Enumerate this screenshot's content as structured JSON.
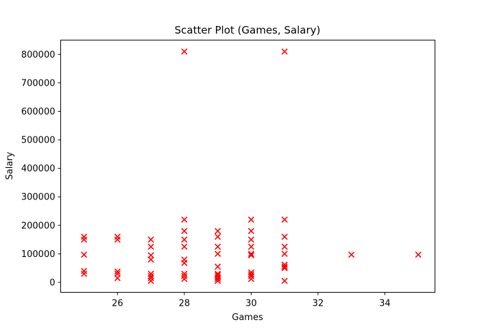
{
  "chart_data": {
    "type": "scatter",
    "title": "Scatter Plot (Games, Salary)",
    "xlabel": "Games",
    "ylabel": "Salary",
    "xlim": [
      24.3,
      35.5
    ],
    "ylim": [
      -35000,
      850000
    ],
    "xticks": [
      "26",
      "28",
      "30",
      "32",
      "34"
    ],
    "xtick_values": [
      26,
      28,
      30,
      32,
      34
    ],
    "yticks": [
      "0",
      "100000",
      "200000",
      "300000",
      "400000",
      "500000",
      "600000",
      "700000",
      "800000"
    ],
    "ytick_values": [
      0,
      100000,
      200000,
      300000,
      400000,
      500000,
      600000,
      700000,
      800000
    ],
    "grid": false,
    "marker": "x",
    "color": "#ff0000",
    "series": [
      {
        "points": [
          [
            25,
            160000
          ],
          [
            25,
            150000
          ],
          [
            25,
            97000
          ],
          [
            25,
            40000
          ],
          [
            25,
            30000
          ],
          [
            26,
            160000
          ],
          [
            26,
            150000
          ],
          [
            26,
            38000
          ],
          [
            26,
            30000
          ],
          [
            26,
            15000
          ],
          [
            27,
            150000
          ],
          [
            27,
            125000
          ],
          [
            27,
            95000
          ],
          [
            27,
            80000
          ],
          [
            27,
            30000
          ],
          [
            27,
            22000
          ],
          [
            27,
            15000
          ],
          [
            27,
            5000
          ],
          [
            28,
            810000
          ],
          [
            28,
            220000
          ],
          [
            28,
            180000
          ],
          [
            28,
            150000
          ],
          [
            28,
            125000
          ],
          [
            28,
            80000
          ],
          [
            28,
            68000
          ],
          [
            28,
            30000
          ],
          [
            28,
            22000
          ],
          [
            28,
            12000
          ],
          [
            29,
            180000
          ],
          [
            29,
            160000
          ],
          [
            29,
            125000
          ],
          [
            29,
            100000
          ],
          [
            29,
            55000
          ],
          [
            29,
            30000
          ],
          [
            29,
            25000
          ],
          [
            29,
            18000
          ],
          [
            29,
            12000
          ],
          [
            29,
            5000
          ],
          [
            30,
            220000
          ],
          [
            30,
            180000
          ],
          [
            30,
            150000
          ],
          [
            30,
            125000
          ],
          [
            30,
            100000
          ],
          [
            30,
            95000
          ],
          [
            30,
            35000
          ],
          [
            30,
            28000
          ],
          [
            30,
            22000
          ],
          [
            30,
            12000
          ],
          [
            31,
            810000
          ],
          [
            31,
            220000
          ],
          [
            31,
            160000
          ],
          [
            31,
            125000
          ],
          [
            31,
            100000
          ],
          [
            31,
            62000
          ],
          [
            31,
            55000
          ],
          [
            31,
            50000
          ],
          [
            31,
            5000
          ],
          [
            33,
            97000
          ],
          [
            35,
            97000
          ]
        ]
      }
    ]
  }
}
